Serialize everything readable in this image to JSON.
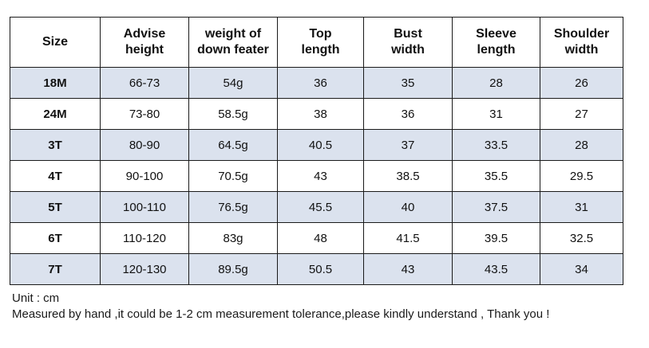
{
  "table": {
    "headers": [
      [
        "Size"
      ],
      [
        "Advise",
        "height"
      ],
      [
        "weight of",
        "down feater"
      ],
      [
        "Top",
        "length"
      ],
      [
        "Bust",
        "width"
      ],
      [
        "Sleeve",
        "length"
      ],
      [
        "Shoulder",
        "width"
      ]
    ],
    "rows": [
      [
        "18M",
        "66-73",
        "54g",
        "36",
        "35",
        "28",
        "26"
      ],
      [
        "24M",
        "73-80",
        "58.5g",
        "38",
        "36",
        "31",
        "27"
      ],
      [
        "3T",
        "80-90",
        "64.5g",
        "40.5",
        "37",
        "33.5",
        "28"
      ],
      [
        "4T",
        "90-100",
        "70.5g",
        "43",
        "38.5",
        "35.5",
        "29.5"
      ],
      [
        "5T",
        "100-110",
        "76.5g",
        "45.5",
        "40",
        "37.5",
        "31"
      ],
      [
        "6T",
        "110-120",
        "83g",
        "48",
        "41.5",
        "39.5",
        "32.5"
      ],
      [
        "7T",
        "120-130",
        "89.5g",
        "50.5",
        "43",
        "43.5",
        "34"
      ]
    ],
    "shaded_row_color": "#dbe2ee"
  },
  "footer": {
    "unit": "Unit : cm",
    "note": "Measured by hand ,it could be 1-2 cm measurement tolerance,please kindly understand , Thank you !"
  }
}
